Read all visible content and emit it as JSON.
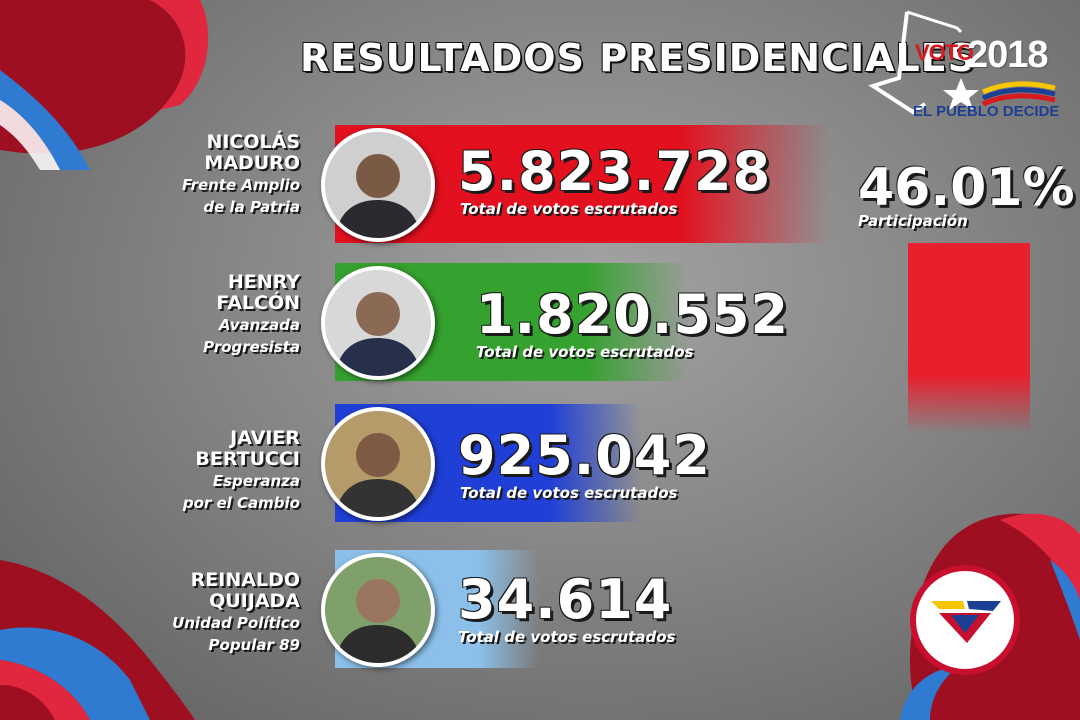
{
  "header": {
    "title": "RESULTADOS PRESIDENCIALES"
  },
  "logo": {
    "brand_word": "VOTO",
    "year": "2018",
    "tagline": "EL PUEBLO DECIDE"
  },
  "participation": {
    "value": "46.01%",
    "label": "Participación",
    "fraction": 0.4601,
    "color": "#e8202e"
  },
  "chart_data": {
    "type": "bar",
    "title": "RESULTADOS PRESIDENCIALES",
    "categories": [
      "NICOLÁS MADURO",
      "HENRY FALCÓN",
      "JAVIER BERTUCCI",
      "REINALDO QUIJADA"
    ],
    "values": [
      5823728,
      1820552,
      925042,
      34614
    ],
    "value_labels": [
      "5.823.728",
      "1.820.552",
      "925.042",
      "34.614"
    ],
    "value_caption": "Total de votos escrutados"
  },
  "candidates": [
    {
      "name_line1": "NICOLÁS",
      "name_line2": "MADURO",
      "party_line1": "Frente Amplio",
      "party_line2": "de la Patria",
      "votes": "5.823.728",
      "votes_label": "Total de votos escrutados",
      "color": "#e3111f",
      "icon": "candidate-portrait-icon"
    },
    {
      "name_line1": "HENRY",
      "name_line2": "FALCÓN",
      "party_line1": "Avanzada",
      "party_line2": "Progresista",
      "votes": "1.820.552",
      "votes_label": "Total de votos escrutados",
      "color": "#35a12e",
      "icon": "candidate-portrait-icon"
    },
    {
      "name_line1": "JAVIER",
      "name_line2": "BERTUCCI",
      "party_line1": "Esperanza",
      "party_line2": "por el Cambio",
      "votes": "925.042",
      "votes_label": "Total de votos escrutados",
      "color": "#1f3fd6",
      "icon": "candidate-portrait-icon"
    },
    {
      "name_line1": "REINALDO",
      "name_line2": "QUIJADA",
      "party_line1": "Unidad Político",
      "party_line2": "Popular 89",
      "votes": "34.614",
      "votes_label": "Total de votos escrutados",
      "color": "#8cc0ea",
      "icon": "candidate-portrait-icon"
    }
  ],
  "colors": {
    "brand_red": "#c8102e",
    "brand_blue": "#2e7bd1",
    "background": "#858585"
  }
}
